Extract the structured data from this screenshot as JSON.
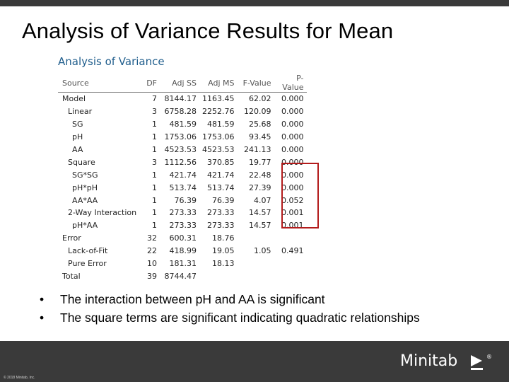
{
  "slide": {
    "title": "Analysis of Variance Results for Mean"
  },
  "anova": {
    "heading": "Analysis of Variance",
    "columns": [
      "Source",
      "DF",
      "Adj SS",
      "Adj MS",
      "F-Value",
      "P-Value"
    ],
    "rows": [
      {
        "source": "Model",
        "level": 0,
        "df": "7",
        "adj_ss": "8144.17",
        "adj_ms": "1163.45",
        "f": "62.02",
        "p": "0.000"
      },
      {
        "source": "Linear",
        "level": 1,
        "df": "3",
        "adj_ss": "6758.28",
        "adj_ms": "2252.76",
        "f": "120.09",
        "p": "0.000"
      },
      {
        "source": "SG",
        "level": 2,
        "df": "1",
        "adj_ss": "481.59",
        "adj_ms": "481.59",
        "f": "25.68",
        "p": "0.000"
      },
      {
        "source": "pH",
        "level": 2,
        "df": "1",
        "adj_ss": "1753.06",
        "adj_ms": "1753.06",
        "f": "93.45",
        "p": "0.000"
      },
      {
        "source": "AA",
        "level": 2,
        "df": "1",
        "adj_ss": "4523.53",
        "adj_ms": "4523.53",
        "f": "241.13",
        "p": "0.000"
      },
      {
        "source": "Square",
        "level": 1,
        "df": "3",
        "adj_ss": "1112.56",
        "adj_ms": "370.85",
        "f": "19.77",
        "p": "0.000"
      },
      {
        "source": "SG*SG",
        "level": 2,
        "df": "1",
        "adj_ss": "421.74",
        "adj_ms": "421.74",
        "f": "22.48",
        "p": "0.000"
      },
      {
        "source": "pH*pH",
        "level": 2,
        "df": "1",
        "adj_ss": "513.74",
        "adj_ms": "513.74",
        "f": "27.39",
        "p": "0.000"
      },
      {
        "source": "AA*AA",
        "level": 2,
        "df": "1",
        "adj_ss": "76.39",
        "adj_ms": "76.39",
        "f": "4.07",
        "p": "0.052"
      },
      {
        "source": "2-Way Interaction",
        "level": 1,
        "df": "1",
        "adj_ss": "273.33",
        "adj_ms": "273.33",
        "f": "14.57",
        "p": "0.001"
      },
      {
        "source": "pH*AA",
        "level": 2,
        "df": "1",
        "adj_ss": "273.33",
        "adj_ms": "273.33",
        "f": "14.57",
        "p": "0.001"
      },
      {
        "source": "Error",
        "level": 0,
        "df": "32",
        "adj_ss": "600.31",
        "adj_ms": "18.76",
        "f": "",
        "p": ""
      },
      {
        "source": "Lack-of-Fit",
        "level": 1,
        "df": "22",
        "adj_ss": "418.99",
        "adj_ms": "19.05",
        "f": "1.05",
        "p": "0.491"
      },
      {
        "source": "Pure Error",
        "level": 1,
        "df": "10",
        "adj_ss": "181.31",
        "adj_ms": "18.13",
        "f": "",
        "p": ""
      },
      {
        "source": "Total",
        "level": 0,
        "df": "39",
        "adj_ss": "8744.47",
        "adj_ms": "",
        "f": "",
        "p": ""
      }
    ]
  },
  "bullets": [
    "The interaction between pH and AA is significant",
    "The square terms are significant indicating quadratic relationships"
  ],
  "bullet_glyph": "•",
  "footer": {
    "copyright": "© 2018 Minitab, Inc.",
    "brand": "Minitab",
    "brand_mark": "®"
  },
  "colors": {
    "bar": "#3a3a3a",
    "heading": "#1f5d8c",
    "highlight": "#b31b1b"
  }
}
